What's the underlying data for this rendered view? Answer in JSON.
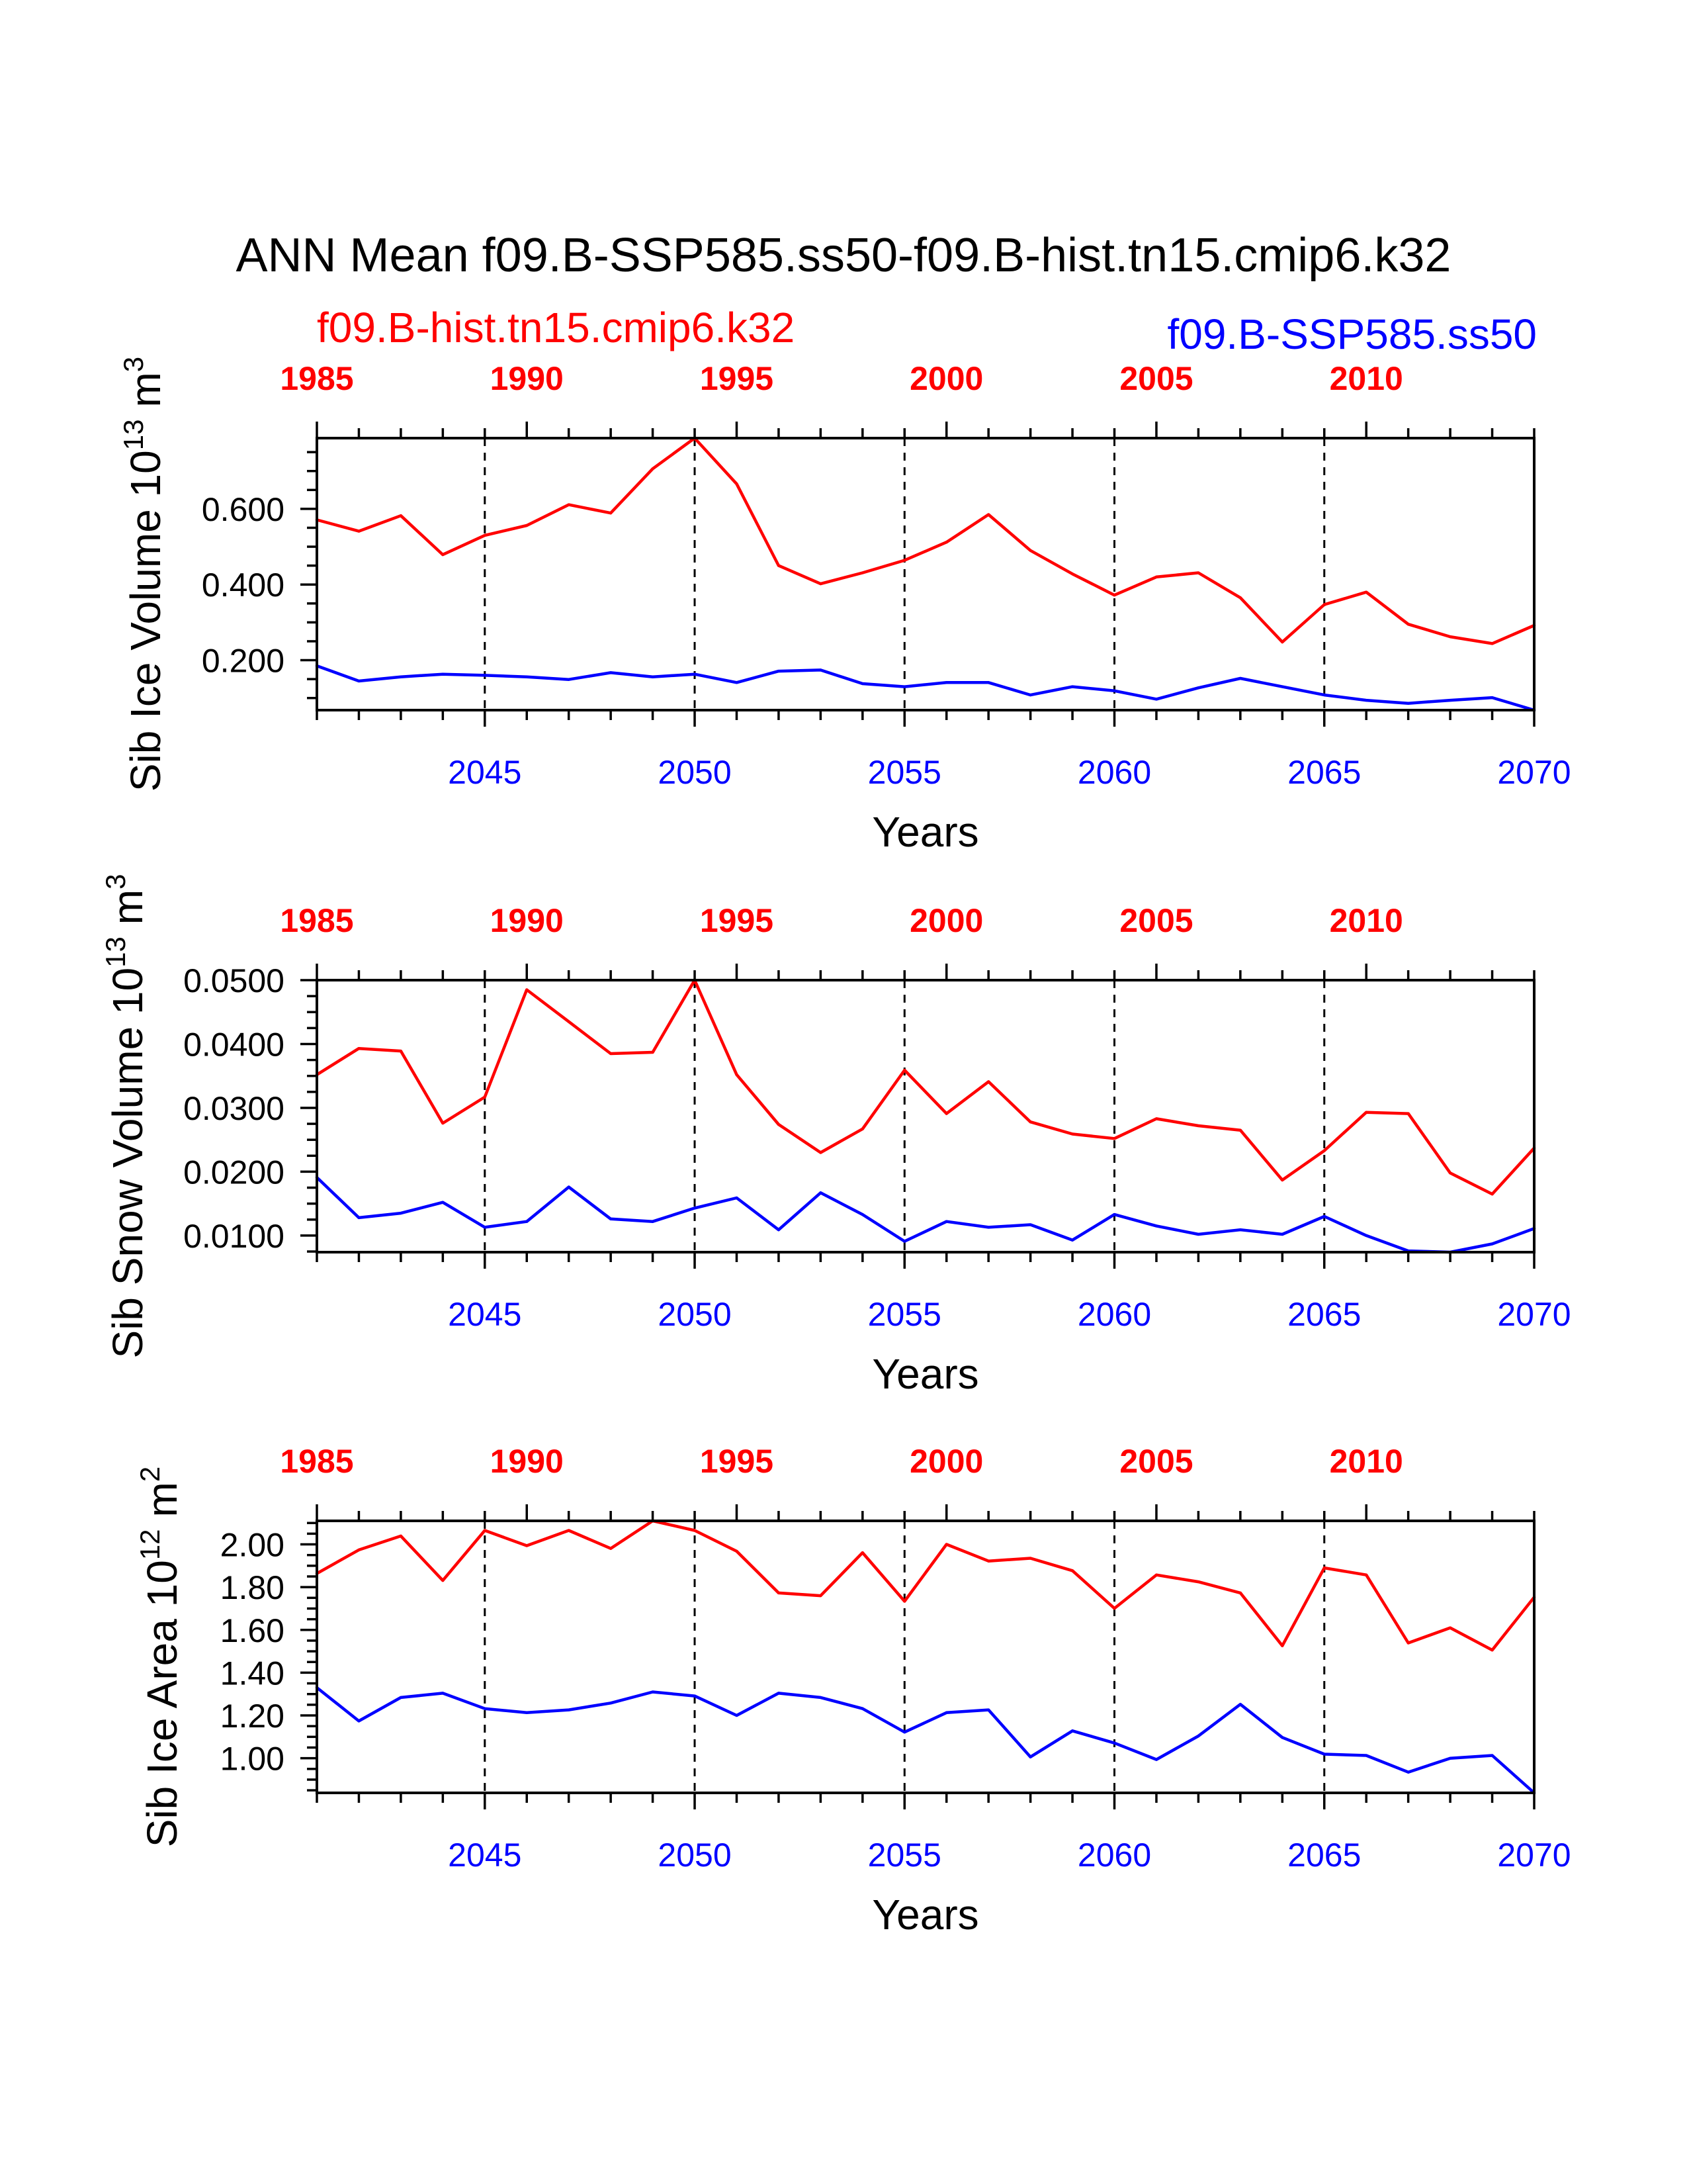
{
  "title": "ANN Mean f09.B-SSP585.ss50-f09.B-hist.tn15.cmip6.k32",
  "chart_data": [
    {
      "type": "line",
      "legend_placement": "top",
      "xlabel": "Years",
      "ylabel": {
        "text": "Sib Ice Volume 10",
        "exponent": "13",
        "unit": "m",
        "unit_exponent": "3"
      },
      "xlim": [
        2041,
        2070
      ],
      "xticks": [
        2045,
        2050,
        2055,
        2060,
        2065,
        2070
      ],
      "xtick_labels": [
        "2045",
        "2050",
        "2055",
        "2060",
        "2065",
        "2070"
      ],
      "x2lim": [
        1985,
        2014
      ],
      "x2ticks": [
        1985,
        1990,
        1995,
        2000,
        2005,
        2010
      ],
      "x2tick_labels": [
        "1985",
        "1990",
        "1995",
        "2000",
        "2005",
        "2010"
      ],
      "ylim": [
        0.068,
        0.787
      ],
      "yticks": [
        0.2,
        0.4,
        0.6
      ],
      "ytick_labels": [
        "0.200",
        "0.400",
        "0.600"
      ],
      "yminor_step": 0.05,
      "xgrid": "dashed",
      "series": [
        {
          "name": "f09.B-hist.tn15.cmip6.k32",
          "color": "#ff0000",
          "axis": "top",
          "x": [
            1985,
            1986,
            1987,
            1988,
            1989,
            1990,
            1991,
            1992,
            1993,
            1994,
            1995,
            1996,
            1997,
            1998,
            1999,
            2000,
            2001,
            2002,
            2003,
            2004,
            2005,
            2006,
            2007,
            2008,
            2009,
            2010,
            2011,
            2012,
            2013,
            2014
          ],
          "values": [
            0.571,
            0.541,
            0.582,
            0.479,
            0.53,
            0.556,
            0.611,
            0.589,
            0.706,
            0.787,
            0.666,
            0.45,
            0.402,
            0.431,
            0.464,
            0.512,
            0.585,
            0.49,
            0.428,
            0.372,
            0.42,
            0.431,
            0.365,
            0.248,
            0.347,
            0.38,
            0.295,
            0.262,
            0.244,
            0.292
          ]
        },
        {
          "name": "f09.B-SSP585.ss50",
          "color": "#0000ff",
          "axis": "bottom",
          "x": [
            2041,
            2042,
            2043,
            2044,
            2045,
            2046,
            2047,
            2048,
            2049,
            2050,
            2051,
            2052,
            2053,
            2054,
            2055,
            2056,
            2057,
            2058,
            2059,
            2060,
            2061,
            2062,
            2063,
            2064,
            2065,
            2066,
            2067,
            2068,
            2069,
            2070
          ],
          "values": [
            0.185,
            0.145,
            0.156,
            0.163,
            0.16,
            0.156,
            0.149,
            0.167,
            0.156,
            0.163,
            0.141,
            0.171,
            0.174,
            0.138,
            0.13,
            0.141,
            0.141,
            0.108,
            0.13,
            0.119,
            0.097,
            0.127,
            0.152,
            0.13,
            0.108,
            0.094,
            0.086,
            0.094,
            0.101,
            0.068
          ]
        }
      ]
    },
    {
      "type": "line",
      "xlabel": "Years",
      "ylabel": {
        "text": "Sib Snow Volume 10",
        "exponent": "13",
        "unit": "m",
        "unit_exponent": "3"
      },
      "xlim": [
        2041,
        2070
      ],
      "xticks": [
        2045,
        2050,
        2055,
        2060,
        2065,
        2070
      ],
      "xtick_labels": [
        "2045",
        "2050",
        "2055",
        "2060",
        "2065",
        "2070"
      ],
      "x2lim": [
        1985,
        2014
      ],
      "x2ticks": [
        1985,
        1990,
        1995,
        2000,
        2005,
        2010
      ],
      "x2tick_labels": [
        "1985",
        "1990",
        "1995",
        "2000",
        "2005",
        "2010"
      ],
      "ylim": [
        0.0074,
        0.05
      ],
      "yticks": [
        0.01,
        0.02,
        0.03,
        0.04,
        0.05
      ],
      "ytick_labels": [
        "0.0100",
        "0.0200",
        "0.0300",
        "0.0400",
        "0.0500"
      ],
      "yminor_step": 0.0025,
      "xgrid": "dashed",
      "series": [
        {
          "name": "f09.B-hist.tn15.cmip6.k32",
          "color": "#ff0000",
          "axis": "top",
          "x": [
            1985,
            1986,
            1987,
            1988,
            1989,
            1990,
            1991,
            1992,
            1993,
            1994,
            1995,
            1996,
            1997,
            1998,
            1999,
            2000,
            2001,
            2002,
            2003,
            2004,
            2005,
            2006,
            2007,
            2008,
            2009,
            2010,
            2011,
            2012,
            2013,
            2014
          ],
          "values": [
            0.0352,
            0.0393,
            0.0389,
            0.0276,
            0.0317,
            0.0485,
            0.0435,
            0.0385,
            0.0387,
            0.05,
            0.0352,
            0.0274,
            0.023,
            0.0267,
            0.0359,
            0.0291,
            0.0341,
            0.0278,
            0.0259,
            0.0252,
            0.0283,
            0.0272,
            0.0265,
            0.0187,
            0.0233,
            0.0293,
            0.0291,
            0.0198,
            0.0165,
            0.0237
          ]
        },
        {
          "name": "f09.B-SSP585.ss50",
          "color": "#0000ff",
          "axis": "bottom",
          "x": [
            2041,
            2042,
            2043,
            2044,
            2045,
            2046,
            2047,
            2048,
            2049,
            2050,
            2051,
            2052,
            2053,
            2054,
            2055,
            2056,
            2057,
            2058,
            2059,
            2060,
            2061,
            2062,
            2063,
            2064,
            2065,
            2066,
            2067,
            2068,
            2069,
            2070
          ],
          "values": [
            0.0191,
            0.0128,
            0.0135,
            0.0152,
            0.0113,
            0.0122,
            0.0176,
            0.0126,
            0.0122,
            0.0143,
            0.0159,
            0.0109,
            0.0167,
            0.0133,
            0.0091,
            0.0122,
            0.0113,
            0.0117,
            0.0093,
            0.0133,
            0.0115,
            0.0102,
            0.0109,
            0.0102,
            0.013,
            0.01,
            0.0076,
            0.0074,
            0.0087,
            0.0111
          ]
        }
      ]
    },
    {
      "type": "line",
      "xlabel": "Years",
      "ylabel": {
        "text": "Sib Ice Area 10",
        "exponent": "12",
        "unit": "m",
        "unit_exponent": "2"
      },
      "xlim": [
        2041,
        2070
      ],
      "xticks": [
        2045,
        2050,
        2055,
        2060,
        2065,
        2070
      ],
      "xtick_labels": [
        "2045",
        "2050",
        "2055",
        "2060",
        "2065",
        "2070"
      ],
      "x2lim": [
        1985,
        2014
      ],
      "x2ticks": [
        1985,
        1990,
        1995,
        2000,
        2005,
        2010
      ],
      "x2tick_labels": [
        "1985",
        "1990",
        "1995",
        "2000",
        "2005",
        "2010"
      ],
      "ylim": [
        0.838,
        2.11
      ],
      "yticks": [
        1.0,
        1.2,
        1.4,
        1.6,
        1.8,
        2.0
      ],
      "ytick_labels": [
        "1.00",
        "1.20",
        "1.40",
        "1.60",
        "1.80",
        "2.00"
      ],
      "yminor_step": 0.05,
      "xgrid": "dashed",
      "series": [
        {
          "name": "f09.B-hist.tn15.cmip6.k32",
          "color": "#ff0000",
          "axis": "top",
          "x": [
            1985,
            1986,
            1987,
            1988,
            1989,
            1990,
            1991,
            1992,
            1993,
            1994,
            1995,
            1996,
            1997,
            1998,
            1999,
            2000,
            2001,
            2002,
            2003,
            2004,
            2005,
            2006,
            2007,
            2008,
            2009,
            2010,
            2011,
            2012,
            2013,
            2014
          ],
          "values": [
            1.864,
            1.974,
            2.039,
            1.831,
            2.065,
            1.994,
            2.065,
            1.981,
            2.11,
            2.065,
            1.968,
            1.773,
            1.76,
            1.961,
            1.734,
            2.0,
            1.922,
            1.935,
            1.877,
            1.701,
            1.857,
            1.825,
            1.773,
            1.526,
            1.89,
            1.857,
            1.539,
            1.61,
            1.506,
            1.753
          ]
        },
        {
          "name": "f09.B-SSP585.ss50",
          "color": "#0000ff",
          "axis": "bottom",
          "x": [
            2041,
            2042,
            2043,
            2044,
            2045,
            2046,
            2047,
            2048,
            2049,
            2050,
            2051,
            2052,
            2053,
            2054,
            2055,
            2056,
            2057,
            2058,
            2059,
            2060,
            2061,
            2062,
            2063,
            2064,
            2065,
            2066,
            2067,
            2068,
            2069,
            2070
          ],
          "values": [
            1.33,
            1.174,
            1.284,
            1.304,
            1.232,
            1.213,
            1.226,
            1.258,
            1.31,
            1.291,
            1.2,
            1.304,
            1.284,
            1.232,
            1.122,
            1.213,
            1.226,
            1.006,
            1.128,
            1.071,
            0.994,
            1.104,
            1.252,
            1.097,
            1.019,
            1.013,
            0.935,
            1.0,
            1.013,
            0.838
          ]
        }
      ]
    }
  ]
}
